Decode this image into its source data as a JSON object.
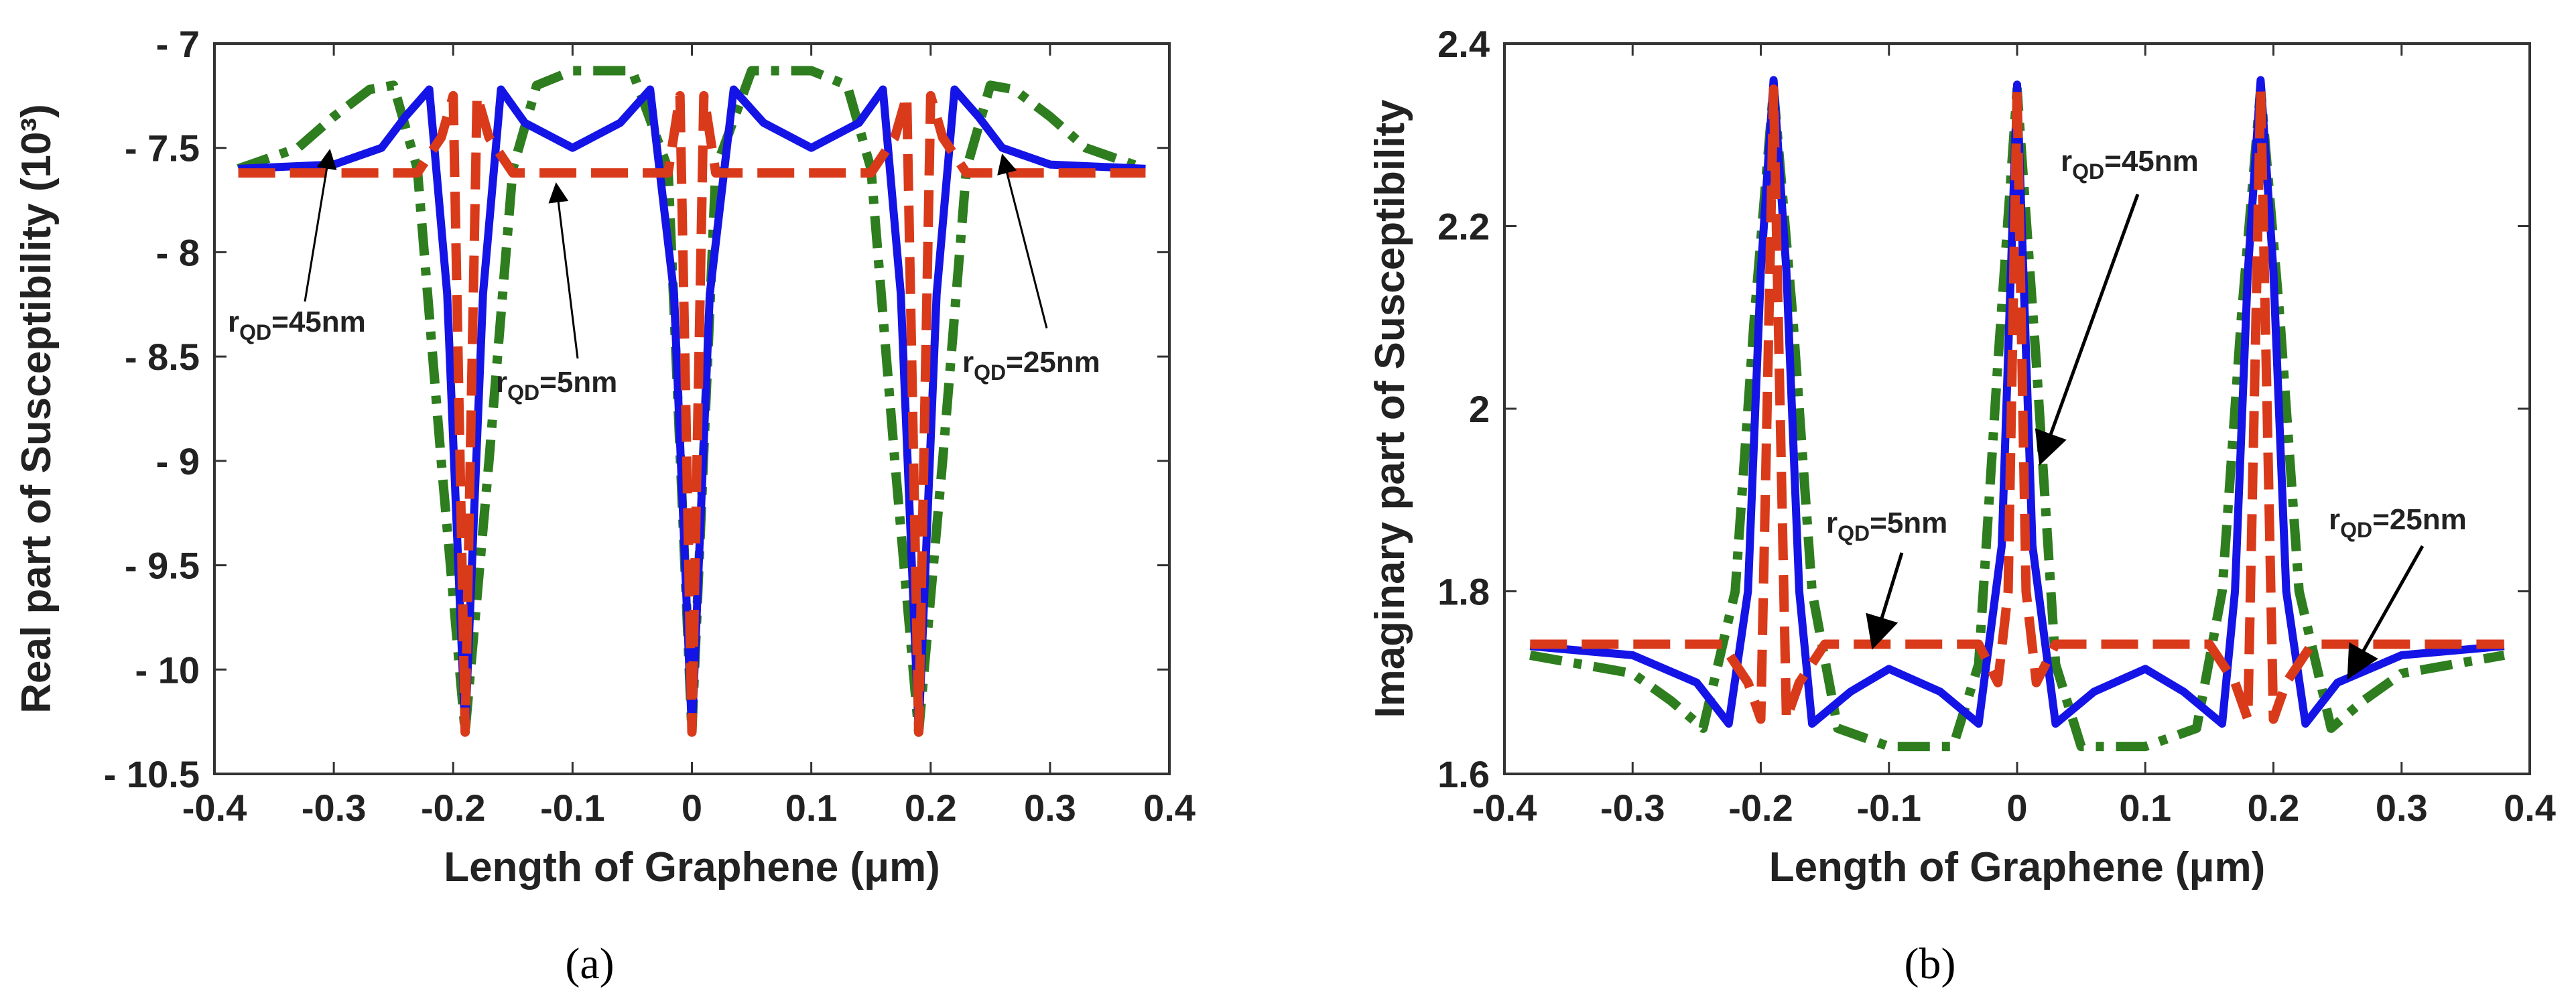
{
  "chart_data": [
    {
      "id": "a",
      "type": "line",
      "caption": "(a)",
      "xlabel": "Length of Graphene (μm)",
      "ylabel": "Real part of Susceptibility (10³)",
      "xlim": [
        -0.4,
        0.4
      ],
      "ylim": [
        -10.5,
        -7
      ],
      "xticks": [
        -0.4,
        -0.3,
        -0.2,
        -0.1,
        0,
        0.1,
        0.2,
        0.3,
        0.4
      ],
      "xtick_labels": [
        "-0.4",
        "-0.3",
        "-0.2",
        "-0.1",
        "0",
        "0.1",
        "0.2",
        "0.3",
        "0.4"
      ],
      "yticks": [
        -7,
        -7.5,
        -8,
        -8.5,
        -9,
        -9.5,
        -10,
        -10.5
      ],
      "ytick_labels": [
        "- 7",
        "- 7.5",
        "- 8",
        "- 8.5",
        "- 9",
        "- 9.5",
        "- 10",
        "- 10.5"
      ],
      "series": [
        {
          "name": "rQD=45nm",
          "style": "dashdot",
          "color": "#2e7d1e",
          "x": [
            -0.38,
            -0.33,
            -0.3,
            -0.27,
            -0.25,
            -0.23,
            -0.21,
            -0.19,
            -0.17,
            -0.15,
            -0.13,
            -0.1,
            -0.05,
            -0.02,
            0,
            0.02,
            0.05,
            0.1,
            0.13,
            0.15,
            0.17,
            0.19,
            0.21,
            0.23,
            0.25,
            0.27,
            0.3,
            0.33,
            0.38
          ],
          "y": [
            -7.6,
            -7.5,
            -7.35,
            -7.22,
            -7.2,
            -7.6,
            -9.0,
            -10.3,
            -9.0,
            -7.6,
            -7.2,
            -7.13,
            -7.13,
            -7.6,
            -10.3,
            -7.6,
            -7.13,
            -7.13,
            -7.2,
            -7.6,
            -9.0,
            -10.3,
            -9.0,
            -7.6,
            -7.2,
            -7.22,
            -7.35,
            -7.5,
            -7.6
          ]
        },
        {
          "name": "rQD=25nm",
          "style": "solid",
          "color": "#1414e6",
          "x": [
            -0.38,
            -0.3,
            -0.26,
            -0.24,
            -0.22,
            -0.205,
            -0.19,
            -0.175,
            -0.16,
            -0.14,
            -0.1,
            -0.06,
            -0.035,
            -0.015,
            0,
            0.015,
            0.035,
            0.06,
            0.1,
            0.14,
            0.16,
            0.175,
            0.19,
            0.205,
            0.22,
            0.24,
            0.26,
            0.3,
            0.38
          ],
          "y": [
            -7.6,
            -7.58,
            -7.5,
            -7.35,
            -7.22,
            -8.2,
            -10.3,
            -8.2,
            -7.22,
            -7.38,
            -7.5,
            -7.38,
            -7.22,
            -8.2,
            -10.3,
            -8.2,
            -7.22,
            -7.38,
            -7.5,
            -7.38,
            -7.22,
            -8.2,
            -10.3,
            -8.2,
            -7.22,
            -7.35,
            -7.5,
            -7.58,
            -7.6
          ]
        },
        {
          "name": "rQD=5nm",
          "style": "dashed",
          "color": "#d93a1a",
          "x": [
            -0.38,
            -0.23,
            -0.21,
            -0.2,
            -0.19,
            -0.18,
            -0.17,
            -0.15,
            -0.02,
            -0.01,
            0,
            0.01,
            0.02,
            0.15,
            0.17,
            0.18,
            0.19,
            0.2,
            0.21,
            0.23,
            0.38
          ],
          "y": [
            -7.62,
            -7.62,
            -7.45,
            -7.25,
            -10.3,
            -7.25,
            -7.45,
            -7.62,
            -7.62,
            -7.25,
            -10.3,
            -7.25,
            -7.62,
            -7.62,
            -7.45,
            -7.25,
            -10.3,
            -7.25,
            -7.45,
            -7.62,
            -7.62
          ]
        }
      ],
      "annotations": [
        {
          "text": "r",
          "sub": "QD",
          "rest": "=45nm"
        },
        {
          "text": "r",
          "sub": "QD",
          "rest": "=5nm"
        },
        {
          "text": "r",
          "sub": "QD",
          "rest": "=25nm"
        }
      ]
    },
    {
      "id": "b",
      "type": "line",
      "caption": "(b)",
      "xlabel": "Length of Graphene (μm)",
      "ylabel": "Imaginary part of Susceptibility",
      "xlim": [
        -0.4,
        0.4
      ],
      "ylim": [
        1.6,
        2.4
      ],
      "xticks": [
        -0.4,
        -0.3,
        -0.2,
        -0.1,
        0,
        0.1,
        0.2,
        0.3,
        0.4
      ],
      "xtick_labels": [
        "-0.4",
        "-0.3",
        "-0.2",
        "-0.1",
        "0",
        "0.1",
        "0.2",
        "0.3",
        "0.4"
      ],
      "yticks": [
        1.6,
        1.8,
        2,
        2.2,
        2.4
      ],
      "ytick_labels": [
        "1.6",
        "1.8",
        "2",
        "2.2",
        "2.4"
      ],
      "series": [
        {
          "name": "rQD=45nm",
          "style": "dashdot",
          "color": "#2e7d1e",
          "x": [
            -0.38,
            -0.3,
            -0.27,
            -0.245,
            -0.22,
            -0.205,
            -0.19,
            -0.175,
            -0.16,
            -0.14,
            -0.1,
            -0.05,
            -0.03,
            -0.015,
            0,
            0.015,
            0.03,
            0.05,
            0.1,
            0.14,
            0.16,
            0.175,
            0.19,
            0.205,
            0.22,
            0.245,
            0.27,
            0.3,
            0.38
          ],
          "y": [
            1.73,
            1.71,
            1.68,
            1.65,
            1.8,
            2.1,
            2.35,
            2.1,
            1.8,
            1.65,
            1.63,
            1.63,
            1.72,
            2.05,
            2.35,
            2.05,
            1.72,
            1.63,
            1.63,
            1.65,
            1.8,
            2.1,
            2.35,
            2.1,
            1.8,
            1.65,
            1.68,
            1.71,
            1.73
          ]
        },
        {
          "name": "rQD=25nm",
          "style": "solid",
          "color": "#1414e6",
          "x": [
            -0.38,
            -0.3,
            -0.25,
            -0.225,
            -0.21,
            -0.2,
            -0.19,
            -0.18,
            -0.17,
            -0.16,
            -0.13,
            -0.1,
            -0.06,
            -0.03,
            -0.012,
            0,
            0.012,
            0.03,
            0.06,
            0.1,
            0.13,
            0.16,
            0.17,
            0.18,
            0.19,
            0.2,
            0.21,
            0.225,
            0.25,
            0.3,
            0.38
          ],
          "y": [
            1.74,
            1.73,
            1.7,
            1.655,
            1.8,
            2.15,
            2.36,
            2.15,
            1.8,
            1.655,
            1.69,
            1.715,
            1.69,
            1.655,
            1.85,
            2.355,
            1.85,
            1.655,
            1.69,
            1.715,
            1.69,
            1.655,
            1.8,
            2.15,
            2.36,
            2.15,
            1.8,
            1.655,
            1.7,
            1.73,
            1.74
          ]
        },
        {
          "name": "rQD=5nm",
          "style": "dashed",
          "color": "#d93a1a",
          "x": [
            -0.38,
            -0.23,
            -0.21,
            -0.2,
            -0.19,
            -0.18,
            -0.17,
            -0.15,
            -0.03,
            -0.015,
            -0.007,
            0,
            0.007,
            0.015,
            0.03,
            0.15,
            0.17,
            0.18,
            0.19,
            0.2,
            0.21,
            0.23,
            0.38
          ],
          "y": [
            1.742,
            1.742,
            1.7,
            1.66,
            2.35,
            1.66,
            1.7,
            1.742,
            1.742,
            1.7,
            1.8,
            2.35,
            1.8,
            1.7,
            1.742,
            1.742,
            1.7,
            1.66,
            2.35,
            1.66,
            1.7,
            1.742,
            1.742
          ]
        }
      ],
      "annotations": [
        {
          "text": "r",
          "sub": "QD",
          "rest": "=45nm"
        },
        {
          "text": "r",
          "sub": "QD",
          "rest": "=5nm"
        },
        {
          "text": "r",
          "sub": "QD",
          "rest": "=25nm"
        }
      ]
    }
  ]
}
